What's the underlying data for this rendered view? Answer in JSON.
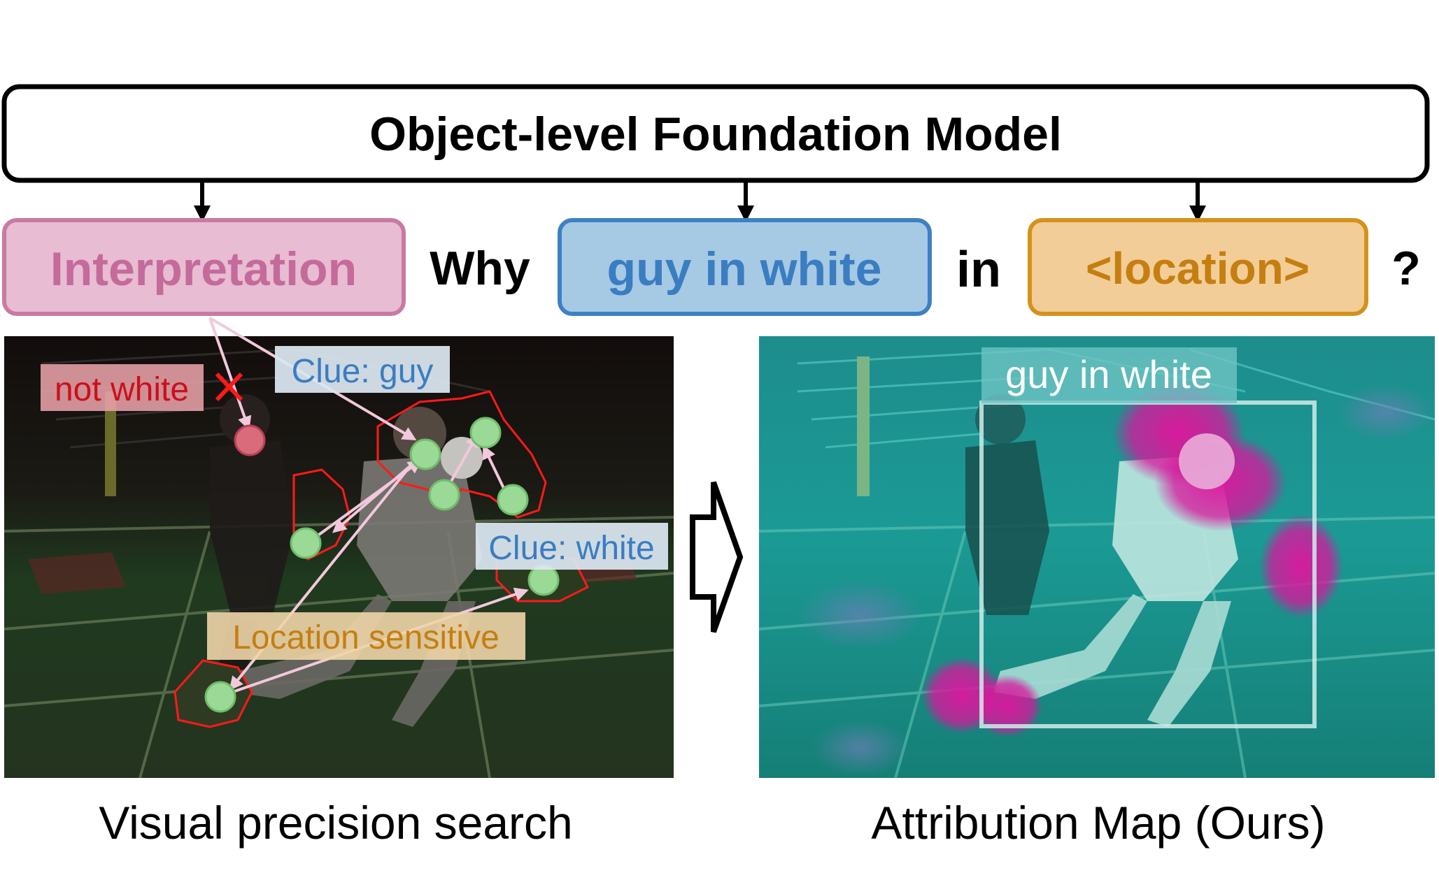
{
  "header": {
    "title": "Object-level Foundation Model"
  },
  "query": {
    "interpretation": "Interpretation",
    "why": "Why",
    "subject": "guy in white",
    "in": "in",
    "location": "<location>",
    "qmark": "?"
  },
  "left_panel": {
    "labels": {
      "not_white": "not white",
      "clue_guy": "Clue: guy",
      "clue_white": "Clue: white",
      "location_sensitive": "Location sensitive"
    },
    "caption": "Visual precision search"
  },
  "right_panel": {
    "box_label": "guy in white",
    "caption": "Attribution Map (Ours)"
  },
  "colors": {
    "interpretation_fill": "#e8bcd2",
    "interpretation_stroke": "#c97aa3",
    "interpretation_text": "#c46b9b",
    "subject_fill": "#a6c9e4",
    "subject_stroke": "#3f80c4",
    "subject_text": "#3a7dc1",
    "location_fill": "#f2cd98",
    "location_stroke": "#d4921c",
    "location_text": "#c57f10",
    "clue_dot": "#9ad996",
    "bad_dot": "#d96b7a",
    "region_outline": "#ff1a1a",
    "attribution_hot": "#d6189c",
    "attribution_cool": "#1fb3b0"
  }
}
